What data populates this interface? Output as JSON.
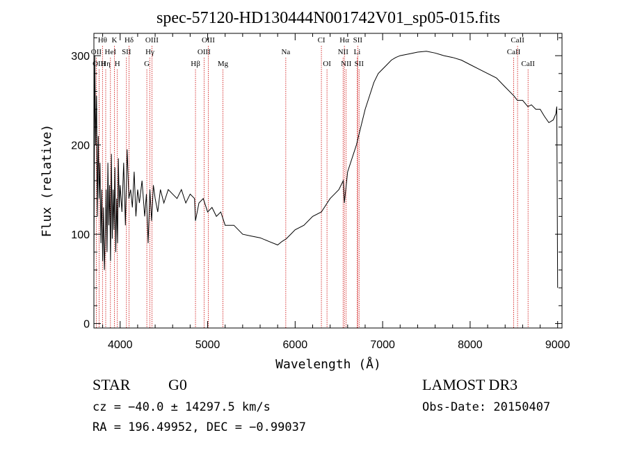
{
  "chart_data": {
    "type": "line",
    "title": "spec-57120-HD130444N001742V01_sp05-015.fits",
    "xlabel": "Wavelength (Å)",
    "ylabel": "Flux (relative)",
    "xlim": [
      3700,
      9050
    ],
    "ylim": [
      -5,
      325
    ],
    "xticks": [
      4000,
      5000,
      6000,
      7000,
      8000,
      9000
    ],
    "yticks": [
      0,
      100,
      200,
      300
    ],
    "grid": false,
    "legend": "none",
    "line_color": "#000000",
    "marker_color": "#cc0000",
    "series": [
      {
        "x": [
          3700,
          3710,
          3720,
          3730,
          3740,
          3750,
          3760,
          3770,
          3780,
          3790,
          3800,
          3810,
          3820,
          3830,
          3840,
          3850,
          3860,
          3870,
          3880,
          3890,
          3900,
          3910,
          3920,
          3930,
          3940,
          3950,
          3960,
          3970,
          3980,
          3990,
          4000,
          4020,
          4040,
          4060,
          4080,
          4100,
          4120,
          4140,
          4160,
          4180,
          4200,
          4220,
          4250,
          4280,
          4300,
          4320,
          4340,
          4360,
          4380,
          4400,
          4430,
          4460,
          4500,
          4550,
          4600,
          4650,
          4700,
          4750,
          4800,
          4850,
          4861,
          4900,
          4950,
          5000,
          5050,
          5100,
          5150,
          5200,
          5300,
          5400,
          5500,
          5600,
          5700,
          5800,
          5850,
          5900,
          5950,
          6000,
          6100,
          6200,
          6300,
          6400,
          6450,
          6500,
          6550,
          6563,
          6600,
          6650,
          6700,
          6750,
          6800,
          6850,
          6900,
          6950,
          7000,
          7050,
          7100,
          7150,
          7200,
          7300,
          7400,
          7500,
          7600,
          7700,
          7800,
          7900,
          8000,
          8100,
          8200,
          8300,
          8400,
          8500,
          8540,
          8600,
          8660,
          8700,
          8750,
          8800,
          8850,
          8900,
          8950,
          8980,
          8990,
          9000
        ],
        "y": [
          60,
          300,
          200,
          255,
          120,
          210,
          140,
          180,
          90,
          150,
          70,
          130,
          60,
          100,
          150,
          80,
          180,
          110,
          155,
          70,
          190,
          95,
          150,
          105,
          175,
          80,
          140,
          90,
          185,
          130,
          155,
          125,
          180,
          110,
          195,
          140,
          150,
          130,
          170,
          120,
          150,
          135,
          160,
          120,
          145,
          90,
          150,
          115,
          155,
          140,
          125,
          150,
          135,
          150,
          145,
          140,
          150,
          135,
          145,
          140,
          115,
          135,
          140,
          125,
          130,
          120,
          125,
          110,
          110,
          100,
          98,
          96,
          92,
          88,
          92,
          95,
          100,
          105,
          110,
          120,
          125,
          140,
          145,
          150,
          160,
          135,
          170,
          185,
          200,
          220,
          240,
          255,
          270,
          280,
          285,
          290,
          295,
          298,
          300,
          302,
          304,
          305,
          303,
          300,
          298,
          295,
          290,
          285,
          280,
          275,
          265,
          255,
          250,
          250,
          243,
          245,
          240,
          240,
          232,
          225,
          228,
          235,
          243,
          40
        ]
      }
    ],
    "lines": [
      {
        "label": "Hθ",
        "row": 1,
        "wl": 3798
      },
      {
        "label": "K",
        "row": 1,
        "wl": 3934
      },
      {
        "label": "Hδ",
        "row": 1,
        "wl": 4102
      },
      {
        "label": "OIII",
        "row": 1,
        "wl": 4363
      },
      {
        "label": "OIII",
        "row": 1,
        "wl": 5007
      },
      {
        "label": "CI",
        "row": 1,
        "wl": 6300
      },
      {
        "label": "Hα",
        "row": 1,
        "wl": 6563
      },
      {
        "label": "SII",
        "row": 1,
        "wl": 6716
      },
      {
        "label": "CaII",
        "row": 1,
        "wl": 8542
      },
      {
        "label": "OII",
        "row": 2,
        "wl": 3727
      },
      {
        "label": "HeI",
        "row": 2,
        "wl": 3889
      },
      {
        "label": "SII",
        "row": 2,
        "wl": 4072
      },
      {
        "label": "Hγ",
        "row": 2,
        "wl": 4340
      },
      {
        "label": "OIII",
        "row": 2,
        "wl": 4959
      },
      {
        "label": "Na",
        "row": 2,
        "wl": 5893
      },
      {
        "label": "NII",
        "row": 2,
        "wl": 6548
      },
      {
        "label": "Li",
        "row": 2,
        "wl": 6708
      },
      {
        "label": "CaII",
        "row": 2,
        "wl": 8498
      },
      {
        "label": "OIII",
        "row": 3,
        "wl": 3760
      },
      {
        "label": "Hη",
        "row": 3,
        "wl": 3835
      },
      {
        "label": "H",
        "row": 3,
        "wl": 3968
      },
      {
        "label": "G",
        "row": 3,
        "wl": 4305
      },
      {
        "label": "Hβ",
        "row": 3,
        "wl": 4861
      },
      {
        "label": "Mg",
        "row": 3,
        "wl": 5175
      },
      {
        "label": "OI",
        "row": 3,
        "wl": 6364
      },
      {
        "label": "NII",
        "row": 3,
        "wl": 6583
      },
      {
        "label": "SII",
        "row": 3,
        "wl": 6731
      },
      {
        "label": "CaII",
        "row": 3,
        "wl": 8662
      }
    ]
  },
  "info": {
    "object_class": "STAR",
    "subclass": "G0",
    "survey": "LAMOST DR3",
    "cz_text": "cz = −40.0 ± 14297.5 km/s",
    "obs_date": "Obs-Date: 20150407",
    "coords": "RA = 196.49952, DEC =  −0.99037"
  }
}
